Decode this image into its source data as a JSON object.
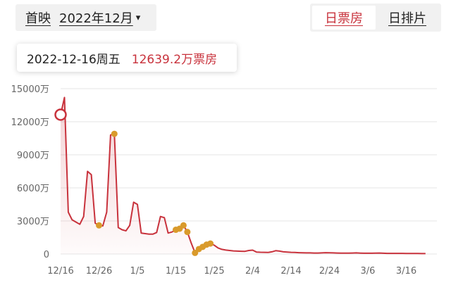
{
  "filter": {
    "label": "首映",
    "month": "2022年12月",
    "caret": "▾"
  },
  "tabs": [
    {
      "label": "日票房",
      "active": true
    },
    {
      "label": "日排片",
      "active": false
    }
  ],
  "tooltip": {
    "date": "2022-12-16周五",
    "value": "12639.2万票房"
  },
  "colors": {
    "accent": "#c8323c",
    "marker": "#d99a2b",
    "grid": "#e6e6e6"
  },
  "chart_data": {
    "type": "area",
    "title": "",
    "xlabel": "",
    "ylabel": "",
    "unit": "万",
    "ylim": [
      0,
      15000
    ],
    "y_ticks": [
      {
        "value": 0,
        "label": "0"
      },
      {
        "value": 3000,
        "label": "3000万"
      },
      {
        "value": 6000,
        "label": "6000万"
      },
      {
        "value": 9000,
        "label": "9000万"
      },
      {
        "value": 12000,
        "label": "12000万"
      },
      {
        "value": 15000,
        "label": "15000万"
      }
    ],
    "x_ticks": [
      {
        "day": 0,
        "label": "12/16"
      },
      {
        "day": 10,
        "label": "12/26"
      },
      {
        "day": 20,
        "label": "1/5"
      },
      {
        "day": 30,
        "label": "1/15"
      },
      {
        "day": 40,
        "label": "1/25"
      },
      {
        "day": 50,
        "label": "2/4"
      },
      {
        "day": 60,
        "label": "2/14"
      },
      {
        "day": 70,
        "label": "2/24"
      },
      {
        "day": 80,
        "label": "3/6"
      },
      {
        "day": 90,
        "label": "3/16"
      }
    ],
    "series": [
      {
        "values": [
          12639,
          14200,
          3800,
          3100,
          2900,
          2700,
          3400,
          7500,
          7200,
          2800,
          2600,
          2550,
          3800,
          10800,
          10900,
          2400,
          2200,
          2100,
          2600,
          4700,
          4500,
          1900,
          1850,
          1800,
          1800,
          1950,
          3400,
          3300,
          1900,
          2000,
          2200,
          2300,
          2600,
          2000,
          1000,
          100,
          450,
          650,
          850,
          950,
          800,
          550,
          420,
          360,
          320,
          280,
          260,
          250,
          240,
          320,
          350,
          180,
          160,
          150,
          140,
          200,
          300,
          260,
          200,
          180,
          150,
          140,
          120,
          110,
          100,
          100,
          90,
          90,
          100,
          120,
          110,
          100,
          90,
          85,
          80,
          80,
          90,
          100,
          80,
          70,
          70,
          70,
          80,
          90,
          70,
          60,
          60,
          60,
          60,
          55,
          50,
          50,
          45,
          45,
          40,
          40
        ]
      }
    ],
    "highlight_points": [
      0
    ],
    "marker_points": [
      10,
      14,
      30,
      31,
      32,
      33,
      35,
      36,
      37,
      38,
      39
    ]
  }
}
